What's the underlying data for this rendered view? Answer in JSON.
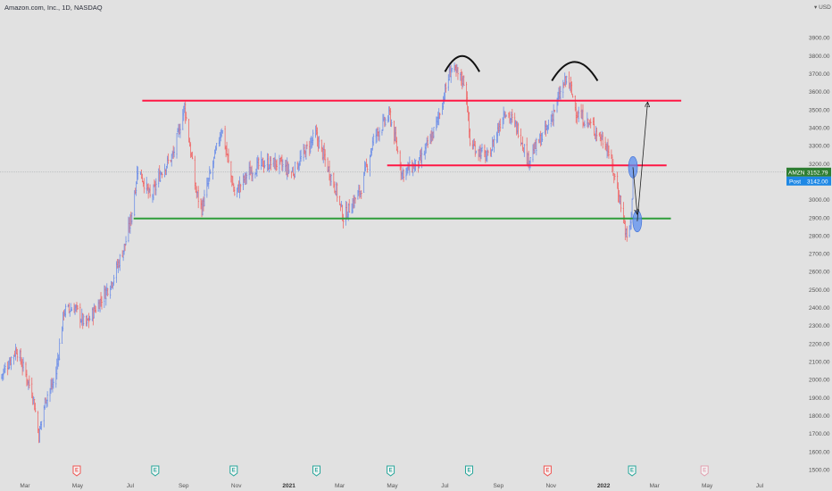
{
  "header": {
    "title": "Amazon.com, Inc., 1D, NASDAQ"
  },
  "currency": {
    "label": "USD"
  },
  "tags": {
    "symbol": "AMZN",
    "last_price": "3152.79",
    "post_label": "Post",
    "post_price": "3142.00",
    "symbol_color": "#2e7d32",
    "post_color": "#1e88e5"
  },
  "chart_data": {
    "type": "candlestick",
    "title": "Amazon.com, Inc., 1D, NASDAQ",
    "y_axis": {
      "ylim": [
        1480,
        4020
      ],
      "ticks": [
        1500,
        1600,
        1700,
        1800,
        1900,
        2000,
        2100,
        2200,
        2300,
        2400,
        2500,
        2600,
        2700,
        2800,
        2900,
        3000,
        3100,
        3200,
        3300,
        3400,
        3500,
        3600,
        3700,
        3800,
        3900
      ],
      "position": "right"
    },
    "x_axis": {
      "labels": [
        {
          "text": "Mar",
          "date": "2020-03-01"
        },
        {
          "text": "May",
          "date": "2020-05-01"
        },
        {
          "text": "Jul",
          "date": "2020-07-01"
        },
        {
          "text": "Sep",
          "date": "2020-09-01"
        },
        {
          "text": "Nov",
          "date": "2020-11-01"
        },
        {
          "text": "2021",
          "date": "2021-01-01",
          "bold": true
        },
        {
          "text": "Mar",
          "date": "2021-03-01"
        },
        {
          "text": "May",
          "date": "2021-05-01"
        },
        {
          "text": "Jul",
          "date": "2021-07-01"
        },
        {
          "text": "Sep",
          "date": "2021-09-01"
        },
        {
          "text": "Nov",
          "date": "2021-11-01"
        },
        {
          "text": "2022",
          "date": "2022-01-01",
          "bold": true
        },
        {
          "text": "Mar",
          "date": "2022-03-01"
        },
        {
          "text": "May",
          "date": "2022-05-01"
        },
        {
          "text": "Jul",
          "date": "2022-07-01"
        }
      ],
      "xlim": [
        "2020-02-01",
        "2022-07-31"
      ]
    },
    "price_path": [
      {
        "date": "2020-02-01",
        "close": 2010
      },
      {
        "date": "2020-02-20",
        "close": 2170
      },
      {
        "date": "2020-03-10",
        "close": 1920
      },
      {
        "date": "2020-03-17",
        "close": 1690
      },
      {
        "date": "2020-03-25",
        "close": 1900
      },
      {
        "date": "2020-04-05",
        "close": 2000
      },
      {
        "date": "2020-04-15",
        "close": 2380
      },
      {
        "date": "2020-04-28",
        "close": 2400
      },
      {
        "date": "2020-05-10",
        "close": 2300
      },
      {
        "date": "2020-05-25",
        "close": 2420
      },
      {
        "date": "2020-06-10",
        "close": 2550
      },
      {
        "date": "2020-06-25",
        "close": 2750
      },
      {
        "date": "2020-07-02",
        "close": 2900
      },
      {
        "date": "2020-07-10",
        "close": 3180
      },
      {
        "date": "2020-07-25",
        "close": 3000
      },
      {
        "date": "2020-08-05",
        "close": 3150
      },
      {
        "date": "2020-08-20",
        "close": 3250
      },
      {
        "date": "2020-09-02",
        "close": 3520
      },
      {
        "date": "2020-09-15",
        "close": 3050
      },
      {
        "date": "2020-09-22",
        "close": 2950
      },
      {
        "date": "2020-10-05",
        "close": 3200
      },
      {
        "date": "2020-10-15",
        "close": 3400
      },
      {
        "date": "2020-10-30",
        "close": 3030
      },
      {
        "date": "2020-11-15",
        "close": 3150
      },
      {
        "date": "2020-12-01",
        "close": 3200
      },
      {
        "date": "2020-12-20",
        "close": 3200
      },
      {
        "date": "2021-01-05",
        "close": 3150
      },
      {
        "date": "2021-02-01",
        "close": 3360
      },
      {
        "date": "2021-02-25",
        "close": 3050
      },
      {
        "date": "2021-03-05",
        "close": 2900
      },
      {
        "date": "2021-03-25",
        "close": 3050
      },
      {
        "date": "2021-04-10",
        "close": 3350
      },
      {
        "date": "2021-04-28",
        "close": 3470
      },
      {
        "date": "2021-05-12",
        "close": 3150
      },
      {
        "date": "2021-06-01",
        "close": 3200
      },
      {
        "date": "2021-06-20",
        "close": 3400
      },
      {
        "date": "2021-07-08",
        "close": 3730
      },
      {
        "date": "2021-07-25",
        "close": 3650
      },
      {
        "date": "2021-07-30",
        "close": 3310
      },
      {
        "date": "2021-08-20",
        "close": 3230
      },
      {
        "date": "2021-09-08",
        "close": 3500
      },
      {
        "date": "2021-09-25",
        "close": 3380
      },
      {
        "date": "2021-10-05",
        "close": 3220
      },
      {
        "date": "2021-10-28",
        "close": 3400
      },
      {
        "date": "2021-11-15",
        "close": 3630
      },
      {
        "date": "2021-11-20",
        "close": 3680
      },
      {
        "date": "2021-12-01",
        "close": 3480
      },
      {
        "date": "2021-12-20",
        "close": 3400
      },
      {
        "date": "2022-01-05",
        "close": 3300
      },
      {
        "date": "2022-01-20",
        "close": 3000
      },
      {
        "date": "2022-01-28",
        "close": 2780
      },
      {
        "date": "2022-02-02",
        "close": 2900
      },
      {
        "date": "2022-02-04",
        "close": 3152
      }
    ],
    "annotations": {
      "horizontal_lines": [
        {
          "y": 3550,
          "from": "2020-07-15",
          "to": "2022-04-01",
          "color": "#ff1744"
        },
        {
          "y": 3190,
          "from": "2021-04-25",
          "to": "2022-03-15",
          "color": "#ff1744"
        },
        {
          "y": 2895,
          "from": "2020-07-05",
          "to": "2022-03-20",
          "color": "#2e9e3a"
        }
      ],
      "arcs": [
        {
          "from": "2021-07-01",
          "to": "2021-08-10",
          "y": 3780
        },
        {
          "from": "2021-11-02",
          "to": "2021-12-25",
          "y": 3730
        }
      ],
      "ellipses": [
        {
          "date": "2022-02-04",
          "y": 3180,
          "color": "#5b8def"
        },
        {
          "date": "2022-02-09",
          "y": 2880,
          "color": "#5b8def"
        }
      ],
      "arrows": [
        {
          "from": {
            "date": "2022-02-04",
            "y": 3180
          },
          "to": {
            "date": "2022-02-09",
            "y": 2920
          }
        },
        {
          "from": {
            "date": "2022-02-09",
            "y": 2880
          },
          "to": {
            "date": "2022-02-21",
            "y": 3540
          }
        }
      ],
      "last_price_line": 3152.79
    },
    "events": [
      {
        "date": "2020-04-30",
        "type": "E",
        "status": "miss",
        "color": "#ef5350"
      },
      {
        "date": "2020-07-30",
        "type": "E",
        "status": "beat",
        "color": "#26a69a"
      },
      {
        "date": "2020-10-29",
        "type": "E",
        "status": "beat",
        "color": "#26a69a"
      },
      {
        "date": "2021-02-02",
        "type": "E",
        "status": "beat",
        "color": "#26a69a"
      },
      {
        "date": "2021-04-29",
        "type": "E",
        "status": "beat",
        "color": "#26a69a"
      },
      {
        "date": "2021-07-29",
        "type": "E",
        "status": "beat",
        "color": "#26a69a"
      },
      {
        "date": "2021-10-28",
        "type": "E",
        "status": "miss",
        "color": "#ef5350"
      },
      {
        "date": "2022-02-03",
        "type": "E",
        "status": "beat",
        "color": "#26a69a"
      },
      {
        "date": "2022-04-28",
        "type": "E",
        "status": "upcoming",
        "color": "#e2a0b0"
      }
    ],
    "colors": {
      "up": "#6e8fe8",
      "down": "#ef6a6a",
      "background": "#e1e1e1"
    },
    "grid": false,
    "legend": "none"
  }
}
